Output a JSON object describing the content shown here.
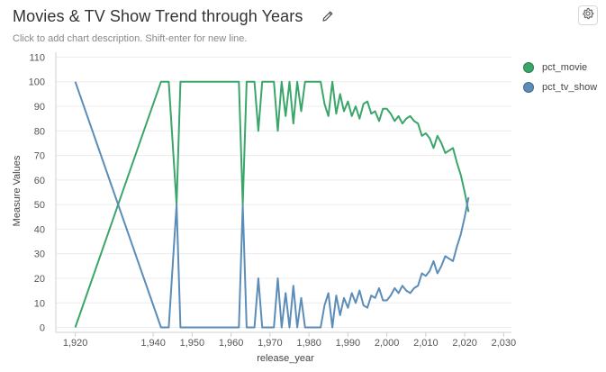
{
  "header": {
    "title": "Movies & TV Show Trend through Years",
    "description": "Click to add chart description. Shift-enter for new line.",
    "edit_icon": "pencil-icon",
    "settings_icon": "gear-icon"
  },
  "colors": {
    "pct_movie": "#3aa66a",
    "pct_tv_show": "#5b8db8",
    "grid": "#ececec",
    "axis": "#cfcfcf"
  },
  "chart_data": {
    "type": "line",
    "title": "Movies & TV Show Trend through Years",
    "xlabel": "release_year",
    "ylabel": "Measure Values",
    "xlim": [
      1915,
      2032
    ],
    "ylim": [
      -2,
      112
    ],
    "x_ticks": [
      1920,
      1940,
      1950,
      1960,
      1970,
      1980,
      1990,
      2000,
      2010,
      2020,
      2030
    ],
    "x_tick_labels": [
      "1,920",
      "1,940",
      "1,950",
      "1,960",
      "1,970",
      "1,980",
      "1,990",
      "2,000",
      "2,010",
      "2,020",
      "2,030"
    ],
    "y_ticks": [
      0,
      10,
      20,
      30,
      40,
      50,
      60,
      70,
      80,
      90,
      100,
      110
    ],
    "y_tick_labels": [
      "0",
      "10",
      "20",
      "30",
      "40",
      "50",
      "60",
      "70",
      "80",
      "90",
      "100",
      "110"
    ],
    "grid": "horizontal",
    "legend_position": "top-right",
    "series": [
      {
        "name": "pct_movie",
        "x": [
          1920,
          1942,
          1944,
          1946,
          1947,
          1962,
          1963,
          1964,
          1966,
          1967,
          1968,
          1969,
          1971,
          1972,
          1973,
          1974,
          1975,
          1976,
          1977,
          1978,
          1979,
          1980,
          1981,
          1982,
          1983,
          1984,
          1985,
          1986,
          1987,
          1988,
          1989,
          1990,
          1991,
          1992,
          1993,
          1994,
          1995,
          1996,
          1997,
          1998,
          1999,
          2000,
          2001,
          2002,
          2003,
          2004,
          2005,
          2006,
          2007,
          2008,
          2009,
          2010,
          2011,
          2012,
          2013,
          2014,
          2015,
          2016,
          2017,
          2018,
          2019,
          2020,
          2021
        ],
        "y": [
          0,
          100,
          100,
          50,
          100,
          100,
          50,
          100,
          100,
          80,
          100,
          100,
          100,
          80,
          100,
          86,
          100,
          83,
          100,
          88,
          100,
          100,
          100,
          100,
          100,
          91,
          86,
          100,
          87,
          95,
          88,
          92,
          86,
          90,
          85,
          91,
          92,
          87,
          88,
          84,
          89,
          89,
          87,
          84,
          86,
          83,
          85,
          86,
          84,
          83,
          78,
          79,
          77,
          73,
          78,
          75,
          71,
          72,
          73,
          67,
          62,
          55,
          47
        ]
      },
      {
        "name": "pct_tv_show",
        "x": [
          1920,
          1942,
          1944,
          1946,
          1947,
          1962,
          1963,
          1964,
          1966,
          1967,
          1968,
          1969,
          1971,
          1972,
          1973,
          1974,
          1975,
          1976,
          1977,
          1978,
          1979,
          1980,
          1981,
          1982,
          1983,
          1984,
          1985,
          1986,
          1987,
          1988,
          1989,
          1990,
          1991,
          1992,
          1993,
          1994,
          1995,
          1996,
          1997,
          1998,
          1999,
          2000,
          2001,
          2002,
          2003,
          2004,
          2005,
          2006,
          2007,
          2008,
          2009,
          2010,
          2011,
          2012,
          2013,
          2014,
          2015,
          2016,
          2017,
          2018,
          2019,
          2020,
          2021
        ],
        "y": [
          100,
          0,
          0,
          50,
          0,
          0,
          50,
          0,
          0,
          20,
          0,
          0,
          0,
          20,
          0,
          14,
          0,
          17,
          0,
          12,
          0,
          0,
          0,
          0,
          0,
          9,
          14,
          0,
          13,
          5,
          12,
          8,
          14,
          10,
          15,
          9,
          8,
          13,
          12,
          16,
          11,
          11,
          13,
          16,
          14,
          17,
          15,
          14,
          16,
          17,
          22,
          21,
          23,
          27,
          22,
          25,
          29,
          28,
          27,
          33,
          38,
          45,
          53
        ]
      }
    ]
  }
}
